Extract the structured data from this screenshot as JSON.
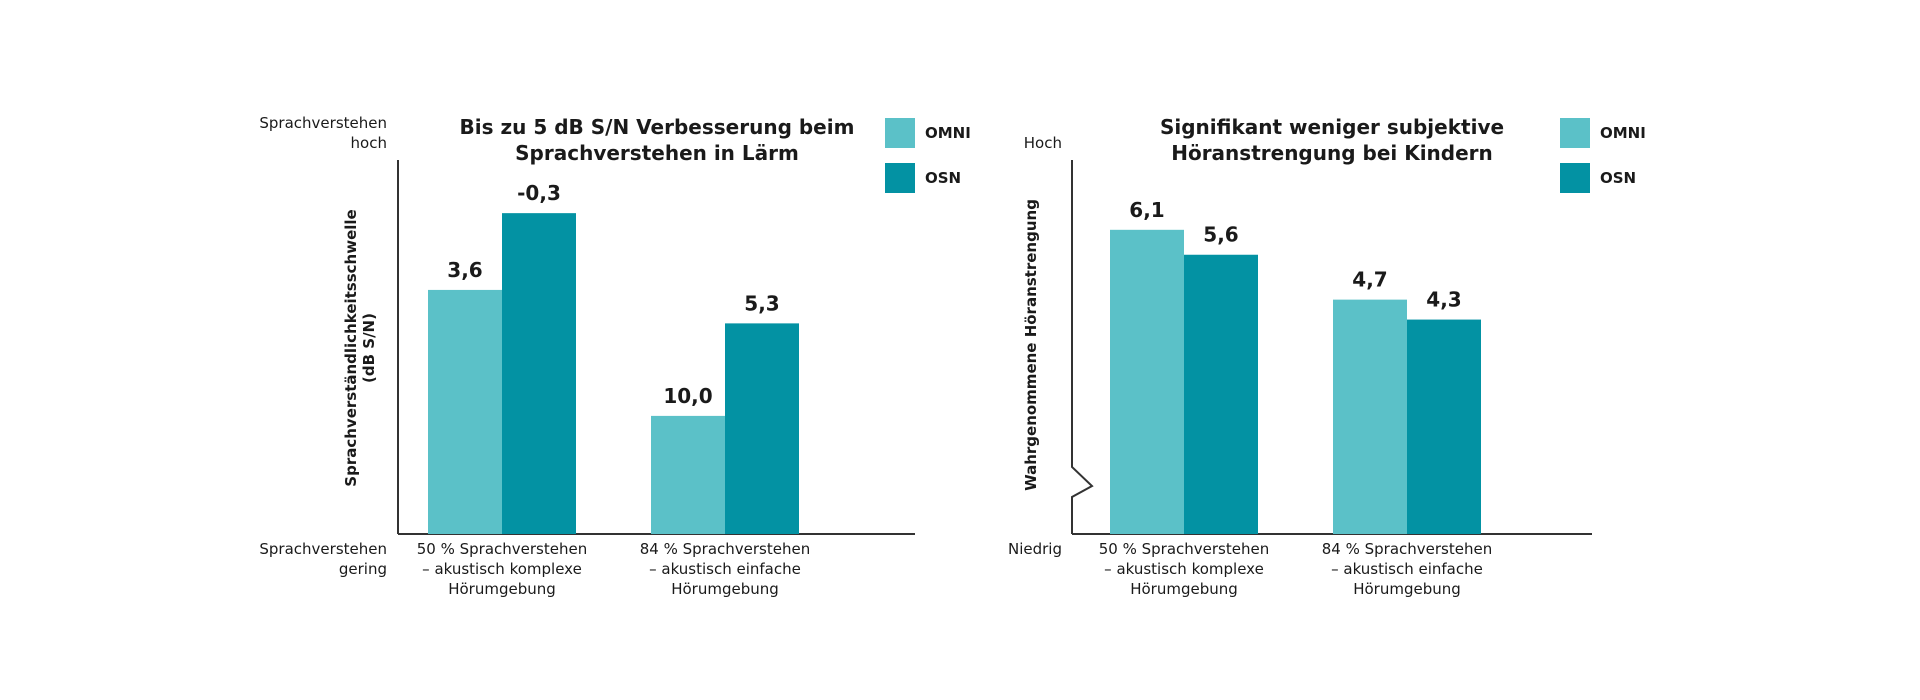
{
  "colors": {
    "omni": "#5bc1c8",
    "osn": "#0392a3",
    "axis": "#333333",
    "text": "#1a1a1a"
  },
  "chart_data": [
    {
      "type": "bar",
      "title": "Bis zu 5 dB S/N Verbesserung beim Sprachverstehen in Lärm",
      "title_lines": [
        "Bis zu 5 dB S/N Verbesserung beim",
        "Sprachverstehen in Lärm"
      ],
      "ylabel_lines": [
        "Sprachverständlichkeitsschwelle",
        "(dB S/N)"
      ],
      "y_top_label": [
        "Sprachverstehen",
        "hoch"
      ],
      "y_bottom_label": [
        "Sprachverstehen",
        "gering"
      ],
      "y_axis_inverted": true,
      "ylim": [
        16,
        -3
      ],
      "categories": [
        [
          "50 % Sprachverstehen",
          "– akustisch komplexe",
          "Hörumgebung"
        ],
        [
          "84 % Sprachverstehen",
          "– akustisch einfache",
          "Hörumgebung"
        ]
      ],
      "series": [
        {
          "name": "OMNI",
          "values": [
            3.6,
            10.0
          ],
          "labels": [
            "3,6",
            "10,0"
          ]
        },
        {
          "name": "OSN",
          "values": [
            -0.3,
            5.3
          ],
          "labels": [
            "-0,3",
            "5,3"
          ]
        }
      ],
      "legend_position": "top-right",
      "grid": false
    },
    {
      "type": "bar",
      "title": "Signifikant weniger subjektive Höranstrengung bei Kindern",
      "title_lines": [
        "Signifikant weniger subjektive",
        "Höranstrengung bei Kindern"
      ],
      "ylabel_lines": [
        "Wahrgenommene Höranstrengung"
      ],
      "y_top_label": [
        "Hoch"
      ],
      "y_bottom_label": [
        "Niedrig"
      ],
      "y_axis_break": true,
      "ylim": [
        0,
        7.5
      ],
      "categories": [
        [
          "50 % Sprachverstehen",
          "– akustisch komplexe",
          "Hörumgebung"
        ],
        [
          "84 % Sprachverstehen",
          "– akustisch einfache",
          "Hörumgebung"
        ]
      ],
      "series": [
        {
          "name": "OMNI",
          "values": [
            6.1,
            4.7
          ],
          "labels": [
            "6,1",
            "4,7"
          ]
        },
        {
          "name": "OSN",
          "values": [
            5.6,
            4.3
          ],
          "labels": [
            "5,6",
            "4,3"
          ]
        }
      ],
      "legend_position": "top-right",
      "grid": false
    }
  ]
}
